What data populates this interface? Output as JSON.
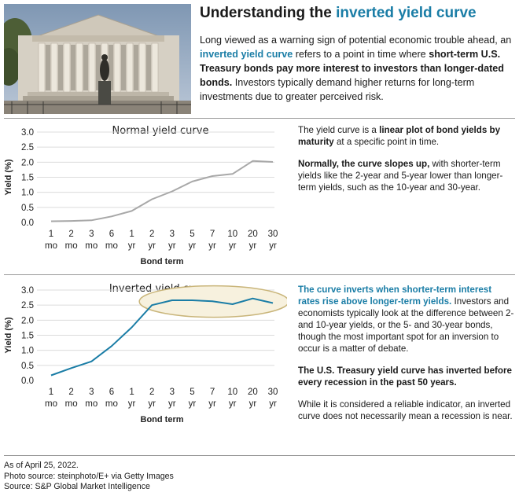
{
  "header": {
    "title_prefix": "Understanding the ",
    "title_highlight": "inverted yield curve",
    "intro_part1": "Long viewed as a warning sign of potential economic trouble ahead, an ",
    "intro_highlight": "inverted yield curve",
    "intro_part2": " refers to a point in time where ",
    "intro_bold": "short-term U.S. Treasury bonds pay more interest to investors than longer-dated bonds.",
    "intro_part3": " Investors typically demand higher returns for long-term investments due to greater perceived risk."
  },
  "normal_text": {
    "p1_part1": "The yield curve is a ",
    "p1_bold": "linear plot of bond yields by maturity",
    "p1_part2": " at a specific point in time.",
    "p2_bold": "Normally, the curve slopes up,",
    "p2_part2": " with shorter-term yields like the 2-year and 5-year lower than longer-term yields, such as the 10-year and 30-year."
  },
  "inverted_text": {
    "p1_highlight": "The curve inverts when shorter-term interest rates rise above longer-term yields.",
    "p1_part2": " Investors and economists typically look at the difference between 2- and 10-year yields, or the 5- and 30-year bonds, though the most important spot for an inversion to occur is a matter of debate.",
    "p2_bold": "The U.S. Treasury yield curve has inverted before every recession in the past 50 years.",
    "p3": "While it is considered a reliable indicator, an inverted curve does not necessarily mean a recession is near."
  },
  "footer": {
    "line1": "As of April 25, 2022.",
    "line2": "Photo source: steinphoto/E+ via Getty Images",
    "line3": "Source: S&P Global Market Intelligence"
  },
  "colors": {
    "accent": "#1a7da6",
    "normal_line": "#a8a8a8",
    "inverted_line": "#1a7da6",
    "highlight_fill": "#f7f1de",
    "highlight_stroke": "#c9b57a"
  },
  "chart_data": [
    {
      "type": "line",
      "title": "Normal yield curve",
      "xlabel": "Bond term",
      "ylabel": "Yield (%)",
      "ylim": [
        0,
        3
      ],
      "yticks": [
        "0.0",
        "0.5",
        "1.0",
        "1.5",
        "2.0",
        "2.5",
        "3.0"
      ],
      "grid": true,
      "categories": [
        [
          "1",
          "mo"
        ],
        [
          "2",
          "mo"
        ],
        [
          "3",
          "mo"
        ],
        [
          "6",
          "mo"
        ],
        [
          "1",
          "yr"
        ],
        [
          "2",
          "yr"
        ],
        [
          "3",
          "yr"
        ],
        [
          "5",
          "yr"
        ],
        [
          "7",
          "yr"
        ],
        [
          "10",
          "yr"
        ],
        [
          "20",
          "yr"
        ],
        [
          "30",
          "yr"
        ]
      ],
      "values": [
        0.04,
        0.05,
        0.07,
        0.2,
        0.38,
        0.77,
        1.03,
        1.36,
        1.54,
        1.61,
        2.04,
        2.01
      ]
    },
    {
      "type": "line",
      "title": "Inverted yield curve",
      "xlabel": "Bond term",
      "ylabel": "Yield (%)",
      "ylim": [
        0,
        3
      ],
      "yticks": [
        "0.0",
        "0.5",
        "1.0",
        "1.5",
        "2.0",
        "2.5",
        "3.0"
      ],
      "grid": true,
      "highlight": "2 yr to 30 yr",
      "categories": [
        [
          "1",
          "mo"
        ],
        [
          "2",
          "mo"
        ],
        [
          "3",
          "mo"
        ],
        [
          "6",
          "mo"
        ],
        [
          "1",
          "yr"
        ],
        [
          "2",
          "yr"
        ],
        [
          "3",
          "yr"
        ],
        [
          "5",
          "yr"
        ],
        [
          "7",
          "yr"
        ],
        [
          "10",
          "yr"
        ],
        [
          "20",
          "yr"
        ],
        [
          "30",
          "yr"
        ]
      ],
      "values": [
        0.17,
        0.41,
        0.63,
        1.14,
        1.76,
        2.5,
        2.66,
        2.66,
        2.63,
        2.53,
        2.72,
        2.57
      ]
    }
  ]
}
